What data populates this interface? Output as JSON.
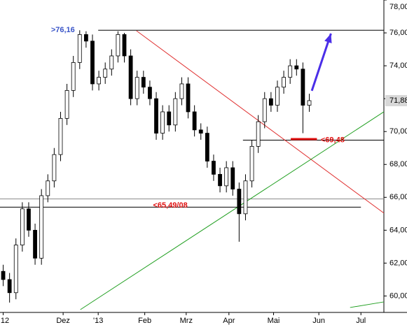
{
  "chart_data": {
    "type": "candlestick",
    "open": [
      61.5,
      61.0,
      60.2,
      63.1,
      65.3,
      64.0,
      62.3,
      66.1,
      67.0,
      68.6,
      70.8,
      72.5,
      74.2,
      75.9,
      75.5,
      72.9,
      73.3,
      73.8,
      74.6,
      75.9,
      74.6,
      72.0,
      73.3,
      72.7,
      72.0,
      69.9,
      71.2,
      70.4,
      72.0,
      72.9,
      71.2,
      70.1,
      69.9,
      68.2,
      67.4,
      66.7,
      67.8,
      66.5,
      65.0,
      67.0,
      69.1,
      70.6,
      72.0,
      71.6,
      72.7,
      73.3,
      74.0,
      73.8,
      71.6
    ],
    "high": [
      61.9,
      61.4,
      63.5,
      65.7,
      65.7,
      64.4,
      66.5,
      67.4,
      69.0,
      71.2,
      72.9,
      74.6,
      76.16,
      76.1,
      75.9,
      73.7,
      74.2,
      75.0,
      76.1,
      76.0,
      75.0,
      73.7,
      73.7,
      73.1,
      72.4,
      71.6,
      71.6,
      72.4,
      73.3,
      73.3,
      71.6,
      70.5,
      70.3,
      68.6,
      67.8,
      68.2,
      68.2,
      66.9,
      67.4,
      69.5,
      71.0,
      72.4,
      72.4,
      73.1,
      73.7,
      74.4,
      74.4,
      74.2,
      72.3
    ],
    "low": [
      60.6,
      59.6,
      59.8,
      62.7,
      63.6,
      61.9,
      61.9,
      65.7,
      66.6,
      68.2,
      70.4,
      72.1,
      73.8,
      75.1,
      72.5,
      72.5,
      72.9,
      73.4,
      74.2,
      74.2,
      71.6,
      71.6,
      72.3,
      71.6,
      69.5,
      69.5,
      70.0,
      70.0,
      71.6,
      70.8,
      69.7,
      69.5,
      67.8,
      67.0,
      66.3,
      66.3,
      66.1,
      63.3,
      64.6,
      66.6,
      68.7,
      70.2,
      71.2,
      71.2,
      72.3,
      72.9,
      73.4,
      69.9,
      71.2
    ],
    "close": [
      61.0,
      60.2,
      63.1,
      65.3,
      64.0,
      62.3,
      66.1,
      67.0,
      68.6,
      70.8,
      72.5,
      74.2,
      75.9,
      75.5,
      72.9,
      73.3,
      73.8,
      74.6,
      75.9,
      74.6,
      72.0,
      73.3,
      72.7,
      72.0,
      69.9,
      71.2,
      70.4,
      72.0,
      72.9,
      71.2,
      70.1,
      69.9,
      68.2,
      67.4,
      66.7,
      67.8,
      66.5,
      65.0,
      67.0,
      69.1,
      70.6,
      72.0,
      71.6,
      72.7,
      73.3,
      74.0,
      73.8,
      71.6,
      71.88
    ],
    "xlim": [
      -0.5,
      59.7
    ],
    "ylim": [
      59,
      78
    ],
    "xticks": [
      {
        "value": 0,
        "label": "12"
      },
      {
        "value": 9.4,
        "label": "Dez"
      },
      {
        "value": 14.9,
        "label": "'13"
      },
      {
        "value": 22.2,
        "label": "Feb"
      },
      {
        "value": 28.7,
        "label": "Mrz"
      },
      {
        "value": 35.4,
        "label": "Apr"
      },
      {
        "value": 42.4,
        "label": "Mai"
      },
      {
        "value": 49.5,
        "label": "Jun"
      },
      {
        "value": 56.1,
        "label": "Jul"
      }
    ],
    "yticks": [
      {
        "value": 60,
        "label": "60,00"
      },
      {
        "value": 62,
        "label": "62,00"
      },
      {
        "value": 64,
        "label": "64,00"
      },
      {
        "value": 66,
        "label": "66,00"
      },
      {
        "value": 68,
        "label": "68,00"
      },
      {
        "value": 70,
        "label": "70,00"
      },
      {
        "value": 72,
        "label": "72,00"
      },
      {
        "value": 74,
        "label": "74,00"
      },
      {
        "value": 76,
        "label": "76,00"
      },
      {
        "value": 78,
        "label": "78,00"
      }
    ],
    "last_price": {
      "value": 71.88,
      "label": "71,88"
    },
    "annotations": [
      {
        "text": ">76,16",
        "value": 76.16,
        "color": "#3a55c8",
        "x": 7.5
      },
      {
        "text": "<69,48",
        "value": 69.48,
        "color": "#e01010",
        "x": 49.8
      },
      {
        "text": "<65,49/08",
        "value": 65.49,
        "color": "#e01010",
        "x": 23.5
      }
    ],
    "lines": [
      {
        "color": "#000000",
        "points": [
          [
            14.9,
            76.16
          ],
          [
            59.7,
            76.16
          ]
        ]
      },
      {
        "color": "#000000",
        "points": [
          [
            37.6,
            69.48
          ],
          [
            59.7,
            69.48
          ]
        ]
      },
      {
        "color": "#888888",
        "points": [
          [
            -0.5,
            65.9
          ],
          [
            59.7,
            65.9
          ]
        ]
      },
      {
        "color": "#000000",
        "points": [
          [
            -0.5,
            65.4
          ],
          [
            56.1,
            65.4
          ]
        ]
      },
      {
        "color": "#e03030",
        "points": [
          [
            20.9,
            76.13
          ],
          [
            59.7,
            65.04
          ]
        ]
      },
      {
        "color": "#22a022",
        "points": [
          [
            12.1,
            59.17
          ],
          [
            59.7,
            71.2
          ]
        ]
      },
      {
        "color": "#22a022",
        "points": [
          [
            54.4,
            59.3
          ],
          [
            59.7,
            59.64
          ]
        ]
      }
    ],
    "marker": {
      "color": "#e01010",
      "points": [
        [
          45.1,
          69.54
        ],
        [
          49.2,
          69.54
        ]
      ]
    },
    "arrow": {
      "color": "#4a2ee8",
      "points": [
        [
          48.4,
          72.48
        ],
        [
          51.4,
          75.96
        ]
      ]
    }
  }
}
